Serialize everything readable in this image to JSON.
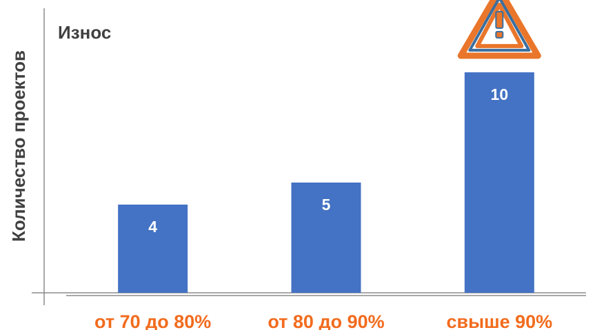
{
  "chart_data": {
    "type": "bar",
    "title": "Износ",
    "ylabel": "Количество проектов",
    "xlabel": "",
    "categories": [
      "от 70 до 80%",
      "от 80 до 90%",
      "свыше 90%"
    ],
    "values": [
      4,
      5,
      10
    ],
    "data_labels": [
      "4",
      "5",
      "10"
    ],
    "ylim": [
      0,
      12
    ],
    "grid": false,
    "legend": "none",
    "bar_color": "#4472C4",
    "category_label_color": "#F26B1D",
    "highlight": {
      "category": "свыше 90%",
      "icon": "warning-triangle-icon",
      "icon_colors": [
        "#E9762B",
        "#3A6E9E"
      ]
    }
  }
}
